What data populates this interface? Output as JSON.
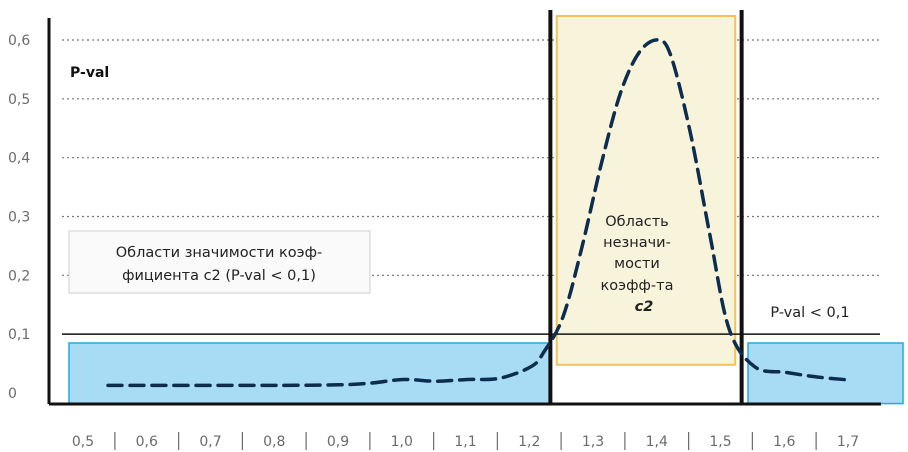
{
  "chart_data": {
    "type": "line",
    "ylabel": "P-val",
    "xlabel": "",
    "ylim": [
      0,
      0.6
    ],
    "xlim": [
      0.5,
      1.7
    ],
    "y_ticks": [
      "0",
      "0,1",
      "0,2",
      "0,3",
      "0,4",
      "0,5",
      "0,6"
    ],
    "x_ticks": [
      "0,5",
      "0,6",
      "0,7",
      "0,8",
      "0,9",
      "1,0",
      "1,1",
      "1,2",
      "1,3",
      "1,4",
      "1,5",
      "1,6",
      "1,7"
    ],
    "x_tick_values": [
      0.5,
      0.6,
      0.7,
      0.8,
      0.9,
      1.0,
      1.1,
      1.2,
      1.3,
      1.4,
      1.5,
      1.6,
      1.7
    ],
    "grid": "horizontal dotted",
    "series": [
      {
        "color": "#0d2d4f",
        "style": "dashed",
        "x": [
          0.5,
          0.6,
          0.7,
          0.8,
          0.9,
          0.95,
          1.0,
          1.05,
          1.1,
          1.15,
          1.2,
          1.22,
          1.25,
          1.28,
          1.31,
          1.34,
          1.37,
          1.4,
          1.42,
          1.45,
          1.48,
          1.51,
          1.55,
          1.6,
          1.65,
          1.7
        ],
        "y": [
          0.013,
          0.013,
          0.013,
          0.013,
          0.014,
          0.017,
          0.023,
          0.02,
          0.023,
          0.025,
          0.045,
          0.07,
          0.13,
          0.25,
          0.39,
          0.51,
          0.58,
          0.6,
          0.57,
          0.44,
          0.27,
          0.11,
          0.045,
          0.035,
          0.027,
          0.022
        ]
      }
    ],
    "threshold": {
      "value": 0.1,
      "label": "P-val < 0,1"
    },
    "boundaries": [
      1.23,
      1.53
    ],
    "regions": [
      {
        "kind": "significant",
        "from": 0.5,
        "to": 1.23,
        "color": "#a8dcf5"
      },
      {
        "kind": "insignificant",
        "from": 1.24,
        "to": 1.52,
        "color": "#f8f4dc",
        "label_lines": [
          "Область",
          "незначи-",
          "мости",
          "коэфф-та"
        ],
        "label_bold": "c2"
      },
      {
        "kind": "significant",
        "from": 1.54,
        "to": 1.7,
        "color": "#a8dcf5"
      }
    ],
    "legend_box": {
      "lines": [
        "Области значимости коэф-",
        "фициента c2  (P-val < 0,1)"
      ]
    },
    "colors": {
      "significant_fill": "#a8dcf5",
      "significant_border": "#29a8df",
      "insignificant_fill": "#f8f4dc",
      "insignificant_border": "#f4c15a",
      "line": "#0d2d4f"
    }
  }
}
